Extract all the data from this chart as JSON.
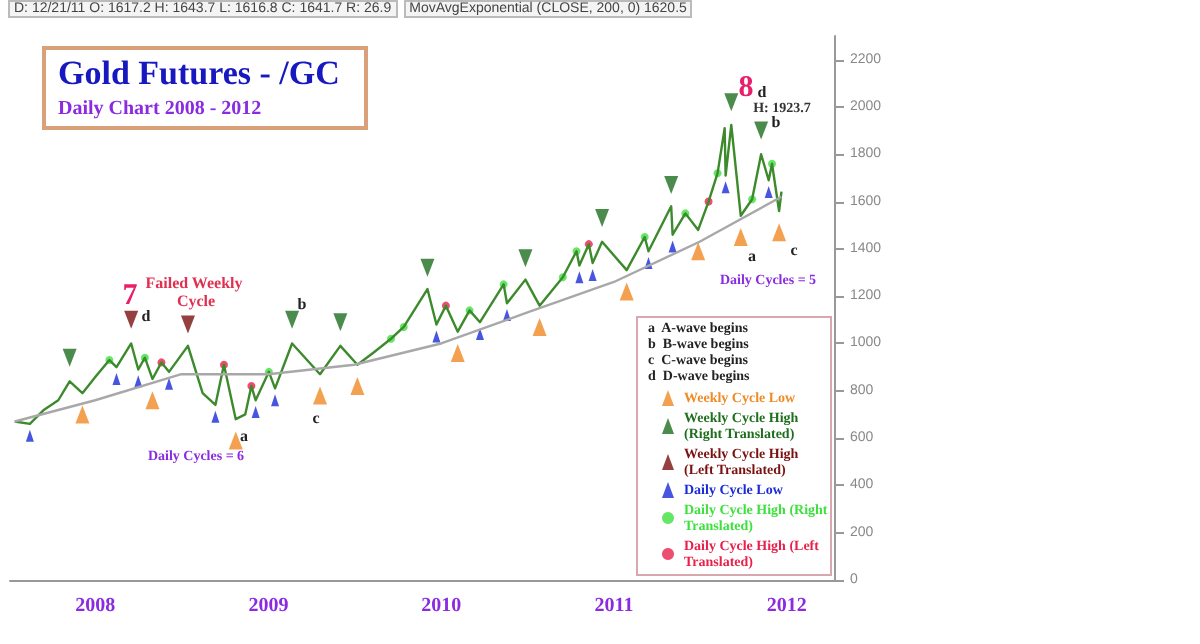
{
  "chart_data": {
    "type": "line",
    "title": "Gold Futures - /GC",
    "subtitle": "Daily Chart  2008 - 2012",
    "annotations": [
      "D: 12/21/11  O: 1617.2  H: 1643.7  L: 1616.8  C: 1641.7  R: 26.9",
      "MovAvgExponential (CLOSE, 200, 0) 1620.5",
      "7",
      "d",
      "Failed Weekly Cycle",
      "a",
      "Daily Cycles = 6",
      "b",
      "c",
      "8",
      "d",
      "H: 1923.7",
      "b",
      "a",
      "c",
      "Daily Cycles = 5",
      "a  A-wave begins",
      "b  B-wave begins",
      "c  C-wave begins",
      "d  D-wave begins"
    ],
    "xlim": [
      "2007-07-05",
      "2012-04-10"
    ],
    "xticks": [
      {
        "value": "2008-01-01",
        "label": "2008"
      },
      {
        "value": "2009-01-01",
        "label": "2009"
      },
      {
        "value": "2010-01-01",
        "label": "2010"
      },
      {
        "value": "2011-01-01",
        "label": "2011"
      },
      {
        "value": "2012-01-01",
        "label": "2012"
      }
    ],
    "ylim": [
      0,
      2300
    ],
    "yticks": [
      0,
      200,
      400,
      600,
      800,
      1000,
      1200,
      1400,
      1600,
      1800,
      2000,
      2200
    ],
    "grid": false,
    "legend": "bottom right",
    "series": [
      {
        "color": "#3c8a2c",
        "x": [
          "2007-07-15",
          "2007-08-16",
          "2007-09-15",
          "2007-10-15",
          "2007-11-08",
          "2007-12-05",
          "2008-01-02",
          "2008-01-31",
          "2008-02-15",
          "2008-03-17",
          "2008-04-01",
          "2008-04-15",
          "2008-05-01",
          "2008-05-20",
          "2008-06-05",
          "2008-07-15",
          "2008-08-15",
          "2008-09-11",
          "2008-09-29",
          "2008-10-24",
          "2008-11-13",
          "2008-11-26",
          "2008-12-05",
          "2009-01-02",
          "2009-01-15",
          "2009-02-20",
          "2009-04-20",
          "2009-06-02",
          "2009-07-08",
          "2009-08-10",
          "2009-09-17",
          "2009-10-14",
          "2009-12-03",
          "2009-12-22",
          "2010-01-11",
          "2010-02-05",
          "2010-03-02",
          "2010-03-24",
          "2010-05-13",
          "2010-05-20",
          "2010-06-28",
          "2010-07-28",
          "2010-09-15",
          "2010-10-14",
          "2010-10-20",
          "2010-11-09",
          "2010-11-17",
          "2010-12-07",
          "2011-01-28",
          "2011-03-07",
          "2011-03-15",
          "2011-05-02",
          "2011-05-05",
          "2011-06-01",
          "2011-06-28",
          "2011-07-20",
          "2011-08-08",
          "2011-08-23",
          "2011-08-25",
          "2011-09-06",
          "2011-09-26",
          "2011-10-20",
          "2011-11-08",
          "2011-11-24",
          "2011-12-01",
          "2011-12-16",
          "2011-12-21"
        ],
        "values": [
          670,
          660,
          720,
          760,
          840,
          790,
          860,
          930,
          900,
          1000,
          890,
          940,
          850,
          920,
          880,
          990,
          790,
          740,
          910,
          680,
          700,
          820,
          760,
          880,
          810,
          1000,
          870,
          990,
          910,
          960,
          1020,
          1070,
          1230,
          1080,
          1160,
          1050,
          1140,
          1090,
          1250,
          1170,
          1270,
          1160,
          1280,
          1390,
          1330,
          1420,
          1340,
          1430,
          1310,
          1450,
          1390,
          1580,
          1460,
          1550,
          1480,
          1600,
          1720,
          1910,
          1710,
          1923.7,
          1540,
          1610,
          1800,
          1690,
          1760,
          1560,
          1641.7
        ]
      },
      {
        "color": "#a8a8a8",
        "x": [
          "2007-07-15",
          "2008-01-01",
          "2008-07-01",
          "2009-01-01",
          "2009-07-01",
          "2010-01-01",
          "2010-07-01",
          "2011-01-01",
          "2011-07-01",
          "2011-12-21"
        ],
        "values": [
          670,
          760,
          870,
          870,
          910,
          1000,
          1130,
          1260,
          1430,
          1620.5
        ]
      },
      {
        "name": "Weekly Cycle Low",
        "type": "scatter",
        "marker": "triangle",
        "color": "#f08a24",
        "x": [
          "2007-12-05",
          "2008-05-01",
          "2008-10-24",
          "2009-04-20",
          "2009-07-08",
          "2010-02-05",
          "2010-07-28",
          "2011-01-28",
          "2011-06-28",
          "2011-09-26",
          "2011-12-16"
        ],
        "values": [
          700,
          760,
          590,
          780,
          820,
          960,
          1070,
          1220,
          1390,
          1450,
          1470
        ]
      },
      {
        "name": "Weekly Cycle High (Right Translated)",
        "type": "scatter",
        "marker": "triangle",
        "color": "#1e6e1e",
        "x": [
          "2007-11-08",
          "2009-02-20",
          "2009-06-02",
          "2009-12-03",
          "2010-06-28",
          "2010-12-07",
          "2011-05-02",
          "2011-09-06",
          "2011-11-08"
        ],
        "values": [
          940,
          1100,
          1090,
          1320,
          1360,
          1530,
          1670,
          2020,
          1900
        ]
      },
      {
        "name": "Weekly Cycle High (Left Translated)",
        "type": "scatter",
        "marker": "triangle",
        "color": "#7a1010",
        "x": [
          "2008-03-17",
          "2008-07-15"
        ],
        "values": [
          1100,
          1080
        ]
      },
      {
        "name": "Daily Cycle Low",
        "type": "scatter",
        "marker": "triangle",
        "color": "#1a2ad8",
        "x": [
          "2007-08-16",
          "2008-02-15",
          "2008-04-01",
          "2008-06-05",
          "2008-09-11",
          "2008-12-05",
          "2009-01-15",
          "2009-12-22",
          "2010-03-24",
          "2010-05-20",
          "2010-10-20",
          "2010-11-17",
          "2011-03-15",
          "2011-05-05",
          "2011-08-25",
          "2011-11-24"
        ],
        "values": [
          610,
          850,
          840,
          830,
          690,
          710,
          760,
          1030,
          1040,
          1120,
          1280,
          1290,
          1340,
          1410,
          1660,
          1640
        ]
      },
      {
        "name": "Daily Cycle High (Right Translated)",
        "type": "scatter",
        "marker": "circle",
        "color": "#3ee03e",
        "x": [
          "2008-01-31",
          "2008-04-15",
          "2009-01-02",
          "2009-09-17",
          "2009-10-14",
          "2010-03-02",
          "2010-05-13",
          "2010-09-15",
          "2010-10-14",
          "2011-03-07",
          "2011-06-01",
          "2011-08-08",
          "2011-10-20",
          "2011-12-01"
        ],
        "values": [
          930,
          940,
          880,
          1020,
          1070,
          1140,
          1250,
          1280,
          1390,
          1450,
          1550,
          1720,
          1610,
          1760
        ]
      },
      {
        "name": "Daily Cycle High (Left Translated)",
        "type": "scatter",
        "marker": "circle",
        "color": "#e8204a",
        "x": [
          "2008-05-20",
          "2008-09-29",
          "2008-11-26",
          "2010-01-11",
          "2010-11-09",
          "2011-07-20"
        ],
        "values": [
          920,
          910,
          820,
          1160,
          1420,
          1600
        ]
      }
    ]
  }
}
